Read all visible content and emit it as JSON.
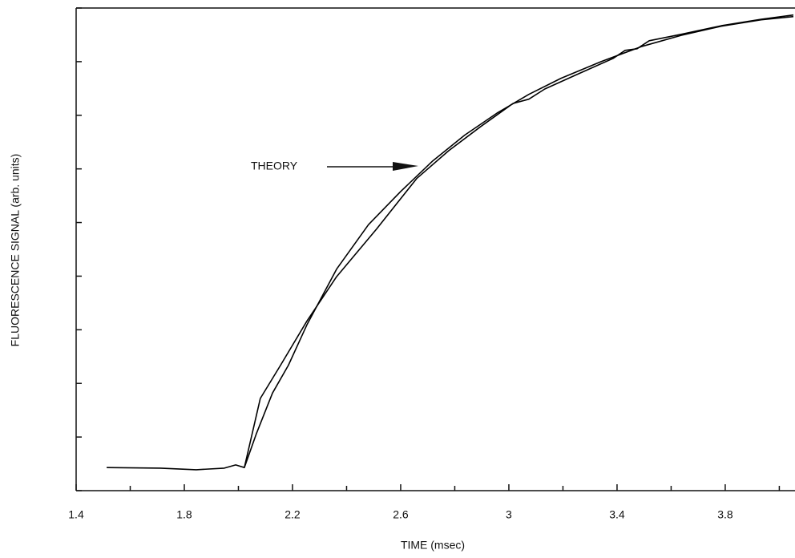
{
  "chart_data": {
    "type": "line",
    "xlabel": "TIME (msec)",
    "ylabel": "FLUORESCENCE SIGNAL (arb. units)",
    "annotations": [
      {
        "text": "THEORY"
      }
    ],
    "xlim": [
      1.4,
      4.058
    ],
    "ylim": [
      0,
      9
    ],
    "xticks": [
      1.4,
      1.8,
      2.2,
      2.6,
      3,
      3.4,
      3.8
    ],
    "x_minor_tick_marks": [
      1.6,
      2.0,
      2.4,
      2.8,
      3.2,
      3.6,
      4.0
    ],
    "y_tick_marks": [
      0,
      1,
      2,
      3,
      4,
      5,
      6,
      7,
      8,
      9
    ],
    "series": [
      {
        "color": "#000000",
        "x": [
          2.022,
          2.067,
          2.126,
          2.185,
          2.253,
          2.363,
          2.481,
          2.6,
          2.719,
          2.837,
          2.956,
          3.074,
          3.193,
          3.341,
          3.489,
          3.637,
          3.785,
          3.933,
          4.052
        ],
        "values": [
          0.43,
          1.07,
          1.82,
          2.34,
          3.09,
          4.13,
          4.96,
          5.58,
          6.15,
          6.63,
          7.04,
          7.39,
          7.69,
          8.0,
          8.28,
          8.49,
          8.66,
          8.78,
          8.84
        ]
      },
      {
        "color": "#000000",
        "x": [
          1.513,
          1.711,
          1.844,
          1.948,
          1.99,
          2.022,
          2.081,
          2.156,
          2.253,
          2.363,
          2.511,
          2.659,
          2.778,
          2.896,
          3.015,
          3.074,
          3.133,
          3.252,
          3.385,
          3.43,
          3.474,
          3.519,
          3.637,
          3.785,
          3.933,
          4.052
        ],
        "values": [
          0.43,
          0.42,
          0.39,
          0.42,
          0.48,
          0.43,
          1.72,
          2.34,
          3.16,
          3.99,
          4.88,
          5.82,
          6.34,
          6.79,
          7.22,
          7.3,
          7.49,
          7.76,
          8.06,
          8.21,
          8.24,
          8.39,
          8.51,
          8.67,
          8.79,
          8.87
        ]
      }
    ]
  }
}
